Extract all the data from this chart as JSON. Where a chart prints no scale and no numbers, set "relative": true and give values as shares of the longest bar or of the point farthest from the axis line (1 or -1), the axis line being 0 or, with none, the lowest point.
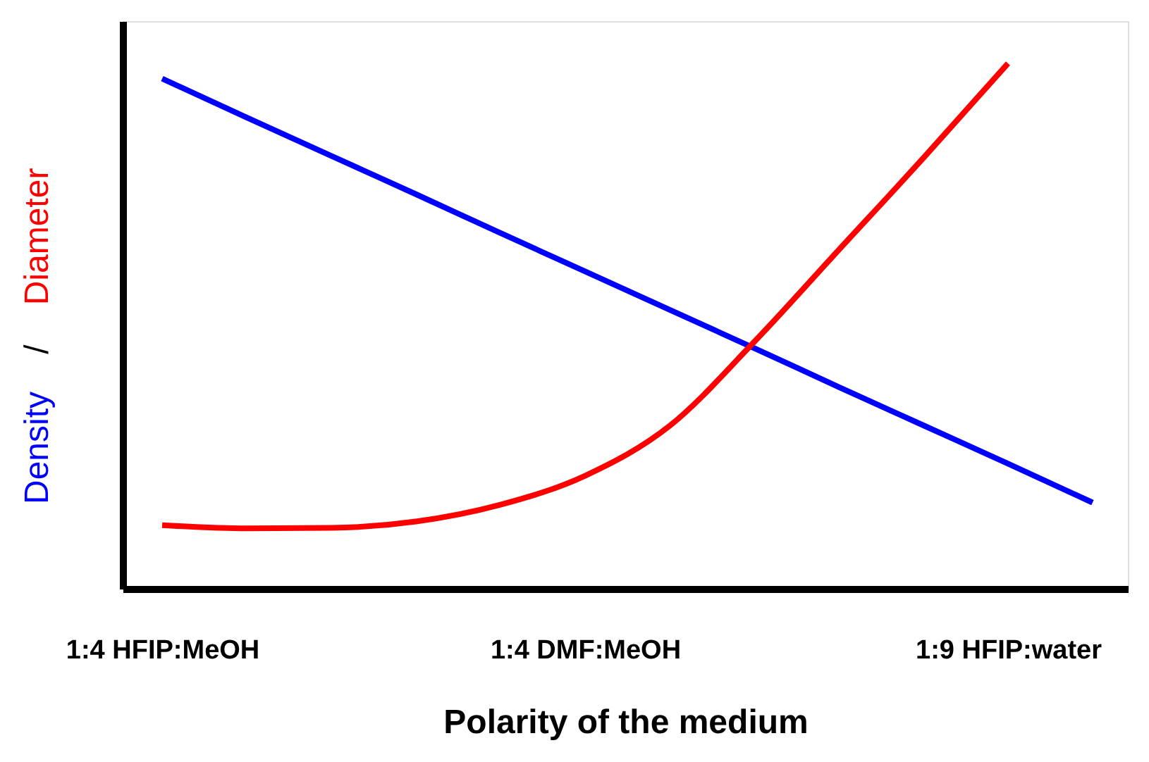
{
  "chart_data": {
    "type": "line",
    "relative": true,
    "xlabel": "Polarity of the medium",
    "annotations": [
      "/"
    ],
    "categories": [
      "1:4 HFIP:MeOH",
      null,
      null,
      null,
      null,
      "1:4 DMF:MeOH",
      null,
      null,
      null,
      null,
      "1:9 HFIP:water",
      null
    ],
    "series": [
      {
        "name": "Density",
        "color": "#0000ff",
        "values": [
          0.971,
          0.897,
          0.824,
          0.751,
          0.677,
          0.604,
          0.531,
          0.458,
          0.384,
          0.311,
          0.238,
          0.164
        ]
      },
      {
        "name": "Diameter",
        "color": "#ff0000",
        "values": [
          0.121,
          0.115,
          0.116,
          0.128,
          0.16,
          0.215,
          0.31,
          0.47,
          0.645,
          0.82,
          1,
          null
        ]
      }
    ],
    "grid": false,
    "legend": "left",
    "marker": "none",
    "line_style": "solid"
  }
}
